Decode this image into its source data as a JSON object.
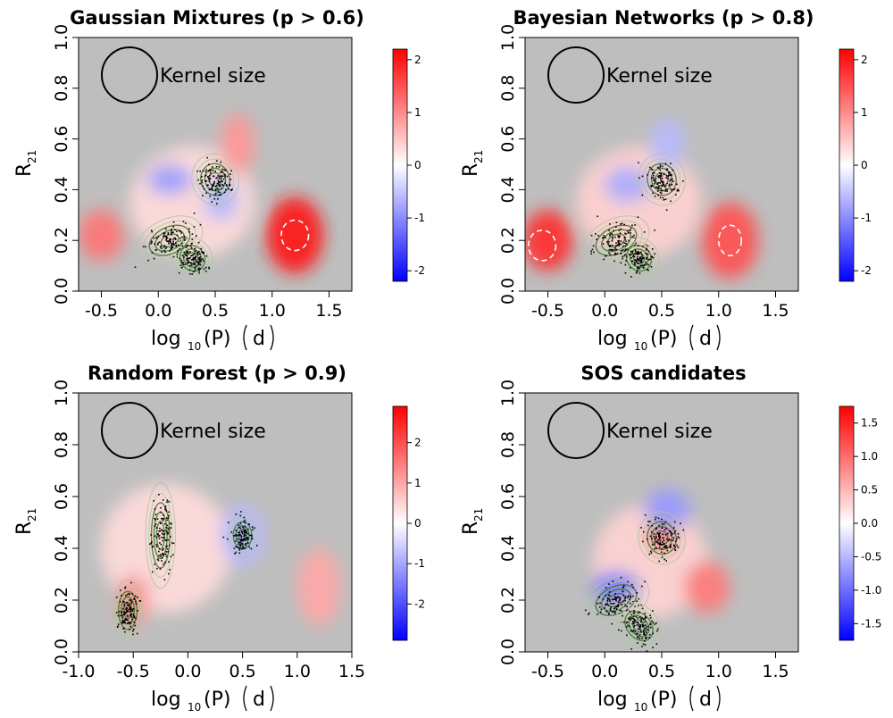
{
  "xlabel": {
    "main": "log",
    "sub": "10",
    "rest": "(P)",
    "unit": "d"
  },
  "ylabel": {
    "main": "R",
    "sub": "21"
  },
  "kernel_label": "Kernel size",
  "colors": {
    "background": "#bebebe",
    "neg": "#0000ff",
    "pos": "#ff0000",
    "mid": "#ffffff",
    "contour": "#2f7d1e",
    "points": "#000000",
    "dashed": "#ffffff"
  },
  "chart_data": [
    {
      "type": "heatmap",
      "title": "Gaussian Mixtures (p > 0.6)",
      "xlim": [
        -0.7,
        1.7
      ],
      "ylim": [
        0.0,
        1.0
      ],
      "xticks": [
        -0.5,
        0.0,
        0.5,
        1.0,
        1.5
      ],
      "xtick_labels": [
        "-0.5",
        "0.0",
        "0.5",
        "1.0",
        "1.5"
      ],
      "yticks": [
        0.0,
        0.2,
        0.4,
        0.6,
        0.8,
        1.0
      ],
      "ytick_labels": [
        "0.0",
        "0.2",
        "0.4",
        "0.6",
        "0.8",
        "1.0"
      ],
      "colorbar": {
        "range": [
          -2.2,
          2.2
        ],
        "ticks": [
          -2,
          -1,
          0,
          1,
          2
        ],
        "tick_labels": [
          "-2",
          "-1",
          "0",
          "1",
          "2"
        ]
      },
      "blobs": [
        {
          "x": 0.3,
          "y": 0.35,
          "rx": 0.55,
          "ry": 0.22,
          "v": 0.3
        },
        {
          "x": 1.2,
          "y": 0.22,
          "rx": 0.25,
          "ry": 0.15,
          "v": 2.0
        },
        {
          "x": 0.7,
          "y": 0.58,
          "rx": 0.15,
          "ry": 0.12,
          "v": 0.9
        },
        {
          "x": -0.5,
          "y": 0.22,
          "rx": 0.2,
          "ry": 0.1,
          "v": 1.2
        },
        {
          "x": 0.1,
          "y": 0.44,
          "rx": 0.2,
          "ry": 0.06,
          "v": -0.8
        },
        {
          "x": 0.55,
          "y": 0.36,
          "rx": 0.15,
          "ry": 0.08,
          "v": -0.6
        }
      ],
      "clusters": [
        {
          "x": 0.5,
          "y": 0.44,
          "rx": 0.12,
          "ry": 0.06,
          "angle": -15
        },
        {
          "x": 0.1,
          "y": 0.2,
          "rx": 0.18,
          "ry": 0.05,
          "angle": -25
        },
        {
          "x": 0.3,
          "y": 0.13,
          "rx": 0.1,
          "ry": 0.05,
          "angle": -40
        }
      ],
      "dashed": [
        {
          "x": 1.2,
          "y": 0.22,
          "rx": 0.12,
          "ry": 0.06
        }
      ]
    },
    {
      "type": "heatmap",
      "title": "Bayesian Networks (p > 0.8)",
      "xlim": [
        -0.7,
        1.7
      ],
      "ylim": [
        0.0,
        1.0
      ],
      "xticks": [
        -0.5,
        0.0,
        0.5,
        1.0,
        1.5
      ],
      "xtick_labels": [
        "-0.5",
        "0.0",
        "0.5",
        "1.0",
        "1.5"
      ],
      "yticks": [
        0.0,
        0.2,
        0.4,
        0.6,
        0.8,
        1.0
      ],
      "ytick_labels": [
        "0.0",
        "0.2",
        "0.4",
        "0.6",
        "0.8",
        "1.0"
      ],
      "colorbar": {
        "range": [
          -2.2,
          2.2
        ],
        "ticks": [
          -2,
          -1,
          0,
          1,
          2
        ],
        "tick_labels": [
          "-2",
          "-1",
          "0",
          "1",
          "2"
        ]
      },
      "blobs": [
        {
          "x": 0.3,
          "y": 0.35,
          "rx": 0.55,
          "ry": 0.22,
          "v": 0.4
        },
        {
          "x": -0.5,
          "y": 0.2,
          "rx": 0.22,
          "ry": 0.12,
          "v": 1.8
        },
        {
          "x": 1.1,
          "y": 0.2,
          "rx": 0.25,
          "ry": 0.15,
          "v": 1.5
        },
        {
          "x": 0.55,
          "y": 0.58,
          "rx": 0.15,
          "ry": 0.1,
          "v": -0.6
        },
        {
          "x": 0.2,
          "y": 0.42,
          "rx": 0.2,
          "ry": 0.07,
          "v": -0.7
        }
      ],
      "clusters": [
        {
          "x": 0.5,
          "y": 0.44,
          "rx": 0.12,
          "ry": 0.06,
          "angle": -15
        },
        {
          "x": 0.1,
          "y": 0.2,
          "rx": 0.18,
          "ry": 0.05,
          "angle": -25
        },
        {
          "x": 0.3,
          "y": 0.13,
          "rx": 0.1,
          "ry": 0.05,
          "angle": -40
        }
      ],
      "dashed": [
        {
          "x": -0.55,
          "y": 0.18,
          "rx": 0.12,
          "ry": 0.06
        },
        {
          "x": 1.1,
          "y": 0.2,
          "rx": 0.1,
          "ry": 0.06
        }
      ]
    },
    {
      "type": "heatmap",
      "title": "Random Forest (p > 0.9)",
      "xlim": [
        -1.0,
        1.5
      ],
      "ylim": [
        0.0,
        1.0
      ],
      "xticks": [
        -1.0,
        -0.5,
        0.0,
        0.5,
        1.0,
        1.5
      ],
      "xtick_labels": [
        "-1.0",
        "-0.5",
        "0.0",
        "0.5",
        "1.0",
        "1.5"
      ],
      "yticks": [
        0.0,
        0.2,
        0.4,
        0.6,
        0.8,
        1.0
      ],
      "ytick_labels": [
        "0.0",
        "0.2",
        "0.4",
        "0.6",
        "0.8",
        "1.0"
      ],
      "colorbar": {
        "range": [
          -2.9,
          2.9
        ],
        "ticks": [
          -2,
          -1,
          0,
          1,
          2
        ],
        "tick_labels": [
          "-2",
          "-1",
          "0",
          "1",
          "2"
        ]
      },
      "blobs": [
        {
          "x": -0.2,
          "y": 0.4,
          "rx": 0.6,
          "ry": 0.25,
          "v": 0.4
        },
        {
          "x": 1.2,
          "y": 0.25,
          "rx": 0.2,
          "ry": 0.15,
          "v": 1.0
        },
        {
          "x": 0.5,
          "y": 0.45,
          "rx": 0.2,
          "ry": 0.12,
          "v": -0.8
        },
        {
          "x": -0.5,
          "y": 0.2,
          "rx": 0.15,
          "ry": 0.1,
          "v": 1.2
        }
      ],
      "clusters": [
        {
          "x": -0.25,
          "y": 0.45,
          "rx": 0.08,
          "ry": 0.12,
          "angle": 0
        },
        {
          "x": -0.55,
          "y": 0.16,
          "rx": 0.08,
          "ry": 0.07,
          "angle": 0
        },
        {
          "x": 0.5,
          "y": 0.45,
          "rx": 0.08,
          "ry": 0.05,
          "angle": 0
        }
      ],
      "dashed": []
    },
    {
      "type": "heatmap",
      "title": "SOS candidates",
      "xlim": [
        -0.7,
        1.7
      ],
      "ylim": [
        0.0,
        1.0
      ],
      "xticks": [
        -0.5,
        0.0,
        0.5,
        1.0,
        1.5
      ],
      "xtick_labels": [
        "-0.5",
        "0.0",
        "0.5",
        "1.0",
        "1.5"
      ],
      "yticks": [
        0.0,
        0.2,
        0.4,
        0.6,
        0.8,
        1.0
      ],
      "ytick_labels": [
        "0.0",
        "0.2",
        "0.4",
        "0.6",
        "0.8",
        "1.0"
      ],
      "colorbar": {
        "range": [
          -1.75,
          1.75
        ],
        "ticks": [
          -1.5,
          -1.0,
          -0.5,
          0.0,
          0.5,
          1.0,
          1.5
        ],
        "tick_labels": [
          "-1.5",
          "-1.0",
          "-0.5",
          "0.0",
          "0.5",
          "1.0",
          "1.5"
        ]
      },
      "blobs": [
        {
          "x": 0.4,
          "y": 0.35,
          "rx": 0.5,
          "ry": 0.22,
          "v": 0.3
        },
        {
          "x": 0.5,
          "y": 0.45,
          "rx": 0.12,
          "ry": 0.06,
          "v": 1.0
        },
        {
          "x": 0.55,
          "y": 0.55,
          "rx": 0.2,
          "ry": 0.08,
          "v": -0.7
        },
        {
          "x": 0.1,
          "y": 0.25,
          "rx": 0.2,
          "ry": 0.06,
          "v": -0.9
        },
        {
          "x": 0.9,
          "y": 0.25,
          "rx": 0.2,
          "ry": 0.1,
          "v": 0.9
        }
      ],
      "clusters": [
        {
          "x": 0.5,
          "y": 0.44,
          "rx": 0.12,
          "ry": 0.06,
          "angle": -15
        },
        {
          "x": 0.1,
          "y": 0.2,
          "rx": 0.18,
          "ry": 0.05,
          "angle": -25
        },
        {
          "x": 0.3,
          "y": 0.1,
          "rx": 0.1,
          "ry": 0.06,
          "angle": -40
        }
      ],
      "dashed": []
    }
  ]
}
